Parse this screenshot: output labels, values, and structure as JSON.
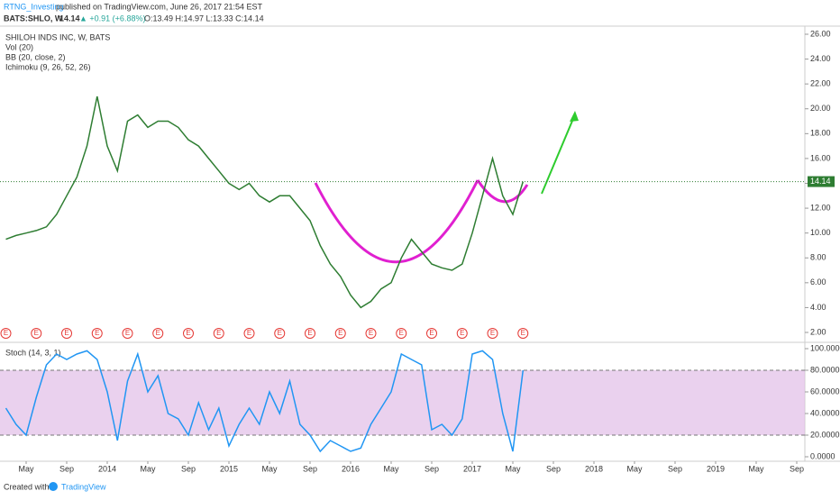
{
  "header": {
    "author": "RTNG_Investing",
    "published": "published on TradingView.com, June 26, 2017 21:54 EST",
    "symbol": "BATS:SHLO, W",
    "last": "14.14",
    "change": "▲ +0.91 (+6.88%)",
    "ohlc": "O:13.49 H:14.97 L:13.33 C:14.14"
  },
  "footer": {
    "created": "Created with",
    "brand": "TradingView"
  },
  "chart_data": [
    {
      "type": "line",
      "title": "SHILOH INDS INC, W, BATS",
      "indicators": [
        "Vol (20)",
        "BB (20, close, 2)",
        "Ichimoku (9, 26, 52, 26)"
      ],
      "last_price_label": {
        "value": 14.14,
        "label": "14.14"
      },
      "earnings": {
        "label": "E",
        "x": [
          "2013-03",
          "2013-06",
          "2013-09",
          "2013-12",
          "2014-03",
          "2014-06",
          "2014-09",
          "2014-12",
          "2015-03",
          "2015-06",
          "2015-09",
          "2015-12",
          "2016-03",
          "2016-06",
          "2016-09",
          "2016-12",
          "2017-03",
          "2017-06"
        ]
      },
      "x": [
        "2013-03",
        "2013-04",
        "2013-05",
        "2013-06",
        "2013-07",
        "2013-08",
        "2013-09",
        "2013-10",
        "2013-11",
        "2013-12",
        "2014-01",
        "2014-02",
        "2014-03",
        "2014-04",
        "2014-05",
        "2014-06",
        "2014-07",
        "2014-08",
        "2014-09",
        "2014-10",
        "2014-11",
        "2014-12",
        "2015-01",
        "2015-02",
        "2015-03",
        "2015-04",
        "2015-05",
        "2015-06",
        "2015-07",
        "2015-08",
        "2015-09",
        "2015-10",
        "2015-11",
        "2015-12",
        "2016-01",
        "2016-02",
        "2016-03",
        "2016-04",
        "2016-05",
        "2016-06",
        "2016-07",
        "2016-08",
        "2016-09",
        "2016-10",
        "2016-11",
        "2016-12",
        "2017-01",
        "2017-02",
        "2017-03",
        "2017-04",
        "2017-05",
        "2017-06"
      ],
      "series": [
        {
          "name": "SHLO",
          "color": "#2e7d32",
          "values": [
            9.5,
            9.8,
            10,
            10.2,
            10.5,
            11.5,
            13,
            14.5,
            17,
            21,
            17,
            15,
            19,
            19.5,
            18.5,
            19,
            19,
            18.5,
            17.5,
            17,
            16,
            15,
            14,
            13.5,
            14,
            13,
            12.5,
            13,
            13,
            12,
            11,
            9,
            7.5,
            6.5,
            5,
            4,
            4.5,
            5.5,
            6,
            8,
            9.5,
            8.5,
            7.5,
            7.2,
            7,
            7.5,
            10,
            13,
            16,
            13,
            11.5,
            14.14
          ]
        }
      ],
      "ylim": [
        2,
        26
      ],
      "yticks": [
        {
          "value": 2,
          "label": "2.00"
        },
        {
          "value": 4,
          "label": "4.00"
        },
        {
          "value": 6,
          "label": "6.00"
        },
        {
          "value": 8,
          "label": "8.00"
        },
        {
          "value": 10,
          "label": "10.00"
        },
        {
          "value": 12,
          "label": "12.00"
        },
        {
          "value": 14,
          "label": "14.00"
        },
        {
          "value": 16,
          "label": "16.00"
        },
        {
          "value": 18,
          "label": "18.00"
        },
        {
          "value": 20,
          "label": "20.00"
        },
        {
          "value": 22,
          "label": "22.00"
        },
        {
          "value": 24,
          "label": "24.00"
        },
        {
          "value": 26,
          "label": "26.00"
        }
      ]
    },
    {
      "type": "line",
      "title": "Stoch (14, 3, 1)",
      "x": [
        "2013-03",
        "2013-04",
        "2013-05",
        "2013-06",
        "2013-07",
        "2013-08",
        "2013-09",
        "2013-10",
        "2013-11",
        "2013-12",
        "2014-01",
        "2014-02",
        "2014-03",
        "2014-04",
        "2014-05",
        "2014-06",
        "2014-07",
        "2014-08",
        "2014-09",
        "2014-10",
        "2014-11",
        "2014-12",
        "2015-01",
        "2015-02",
        "2015-03",
        "2015-04",
        "2015-05",
        "2015-06",
        "2015-07",
        "2015-08",
        "2015-09",
        "2015-10",
        "2015-11",
        "2015-12",
        "2016-01",
        "2016-02",
        "2016-03",
        "2016-04",
        "2016-05",
        "2016-06",
        "2016-07",
        "2016-08",
        "2016-09",
        "2016-10",
        "2016-11",
        "2016-12",
        "2017-01",
        "2017-02",
        "2017-03",
        "2017-04",
        "2017-05",
        "2017-06"
      ],
      "series": [
        {
          "name": "%K",
          "color": "#2196f3",
          "values": [
            45,
            30,
            20,
            55,
            85,
            95,
            90,
            95,
            98,
            90,
            60,
            15,
            70,
            95,
            60,
            75,
            40,
            35,
            20,
            50,
            25,
            45,
            10,
            30,
            45,
            30,
            60,
            40,
            70,
            30,
            20,
            5,
            15,
            10,
            5,
            8,
            30,
            45,
            60,
            95,
            90,
            85,
            25,
            30,
            20,
            35,
            95,
            98,
            90,
            40,
            5,
            80
          ]
        }
      ],
      "ylim": [
        0,
        100
      ],
      "yticks": [
        {
          "value": 0,
          "label": "0.0000"
        },
        {
          "value": 20,
          "label": "20.0000"
        },
        {
          "value": 40,
          "label": "40.0000"
        },
        {
          "value": 60,
          "label": "60.0000"
        },
        {
          "value": 80,
          "label": "80.0000"
        },
        {
          "value": 100,
          "label": "100.0000"
        }
      ],
      "band": [
        20,
        80
      ],
      "xticks": [
        {
          "value": "2013-05",
          "label": "May"
        },
        {
          "value": "2013-09",
          "label": "Sep"
        },
        {
          "value": "2014-01",
          "label": "2014"
        },
        {
          "value": "2014-05",
          "label": "May"
        },
        {
          "value": "2014-09",
          "label": "Sep"
        },
        {
          "value": "2015-01",
          "label": "2015"
        },
        {
          "value": "2015-05",
          "label": "May"
        },
        {
          "value": "2015-09",
          "label": "Sep"
        },
        {
          "value": "2016-01",
          "label": "2016"
        },
        {
          "value": "2016-05",
          "label": "May"
        },
        {
          "value": "2016-09",
          "label": "Sep"
        },
        {
          "value": "2017-01",
          "label": "2017"
        },
        {
          "value": "2017-05",
          "label": "May"
        },
        {
          "value": "2017-09",
          "label": "Sep"
        },
        {
          "value": "2018-01",
          "label": "2018"
        },
        {
          "value": "2018-05",
          "label": "May"
        },
        {
          "value": "2018-09",
          "label": "Sep"
        },
        {
          "value": "2019-01",
          "label": "2019"
        },
        {
          "value": "2019-05",
          "label": "May"
        },
        {
          "value": "2019-09",
          "label": "Sep"
        }
      ]
    }
  ]
}
